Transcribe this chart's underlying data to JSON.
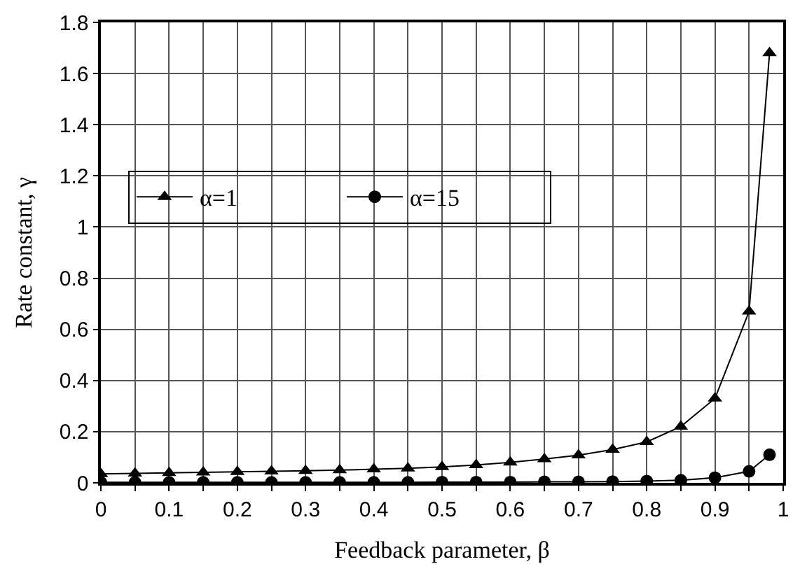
{
  "chart_data": {
    "type": "line",
    "xlabel": "Feedback parameter, β",
    "ylabel": "Rate constant, γ",
    "x": [
      0,
      0.05,
      0.1,
      0.15,
      0.2,
      0.25,
      0.3,
      0.35,
      0.4,
      0.45,
      0.5,
      0.55,
      0.6,
      0.65,
      0.7,
      0.75,
      0.8,
      0.85,
      0.9,
      0.95,
      0.98
    ],
    "series": [
      {
        "name": "α=1",
        "color": "#000000",
        "marker": "triangle",
        "values": [
          0.035,
          0.037,
          0.039,
          0.041,
          0.043,
          0.045,
          0.047,
          0.05,
          0.053,
          0.057,
          0.062,
          0.07,
          0.08,
          0.093,
          0.108,
          0.13,
          0.16,
          0.22,
          0.33,
          0.67,
          1.68
        ]
      },
      {
        "name": "α=15",
        "color": "#000000",
        "marker": "circle",
        "values": [
          0.002,
          0.002,
          0.002,
          0.002,
          0.002,
          0.002,
          0.002,
          0.002,
          0.002,
          0.002,
          0.003,
          0.003,
          0.003,
          0.004,
          0.004,
          0.005,
          0.007,
          0.01,
          0.02,
          0.045,
          0.11
        ]
      }
    ],
    "xlim": [
      0,
      1
    ],
    "ylim": [
      0,
      1.8
    ],
    "xticks": [
      0,
      {
        "value": 0.05,
        "label": null
      },
      0.1,
      {
        "value": 0.15,
        "label": null
      },
      0.2,
      {
        "value": 0.25,
        "label": null
      },
      0.3,
      {
        "value": 0.35,
        "label": null
      },
      0.4,
      {
        "value": 0.45,
        "label": null
      },
      0.5,
      {
        "value": 0.55,
        "label": null
      },
      0.6,
      {
        "value": 0.65,
        "label": null
      },
      0.7,
      {
        "value": 0.75,
        "label": null
      },
      0.8,
      {
        "value": 0.85,
        "label": null
      },
      0.9,
      {
        "value": 0.95,
        "label": null
      },
      1
    ],
    "yticks": [
      0,
      0.2,
      0.4,
      0.6,
      0.8,
      1,
      1.2,
      1.4,
      1.6,
      1.8
    ],
    "grid": true,
    "legend": "left",
    "line_style": "solid"
  }
}
